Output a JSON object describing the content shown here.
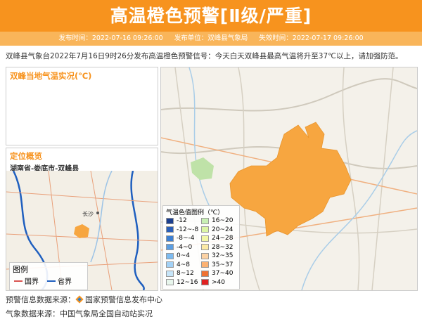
{
  "header": {
    "title": "高温橙色预警[Ⅱ级/严重]",
    "meta": [
      {
        "label": "发布时间：",
        "value": "2022-07-16 09:26:00"
      },
      {
        "label": "发布单位：",
        "value": "双峰县气象局"
      },
      {
        "label": "失效时间：",
        "value": "2022-07-17 09:26:00"
      }
    ]
  },
  "content": "双峰县气象台2022年7月16日9时26分发布高温橙色预警信号：今天白天双峰县最高气温将升至37℃以上，请加强防范。",
  "live_panel": {
    "title": "双峰当地气温实况(℃)"
  },
  "locator": {
    "title": "定位概览",
    "path": "湖南省-娄底市-双峰县",
    "city": "长沙",
    "legend": {
      "title": "图例",
      "items": [
        {
          "label": "国界",
          "color": "#d9534f"
        },
        {
          "label": "省界",
          "color": "#1f5fbf"
        }
      ]
    }
  },
  "map_legend": {
    "title": "气温色值图例（℃）",
    "items": [
      {
        "label": "-12",
        "color": "#1b3f8f"
      },
      {
        "label": "-12~-8",
        "color": "#2a5fb8"
      },
      {
        "label": "-8~-4",
        "color": "#3c7fd2"
      },
      {
        "label": "-4~0",
        "color": "#5b9ee2"
      },
      {
        "label": "0~4",
        "color": "#7dbbf0"
      },
      {
        "label": "4~8",
        "color": "#a2d1f6"
      },
      {
        "label": "8~12",
        "color": "#c6e5f9"
      },
      {
        "label": "12~16",
        "color": "#e8f6ec"
      },
      {
        "label": "16~20",
        "color": "#c8f0b4"
      },
      {
        "label": "20~24",
        "color": "#dbf5a4"
      },
      {
        "label": "24~28",
        "color": "#f1f6a4"
      },
      {
        "label": "28~32",
        "color": "#fbe9a4"
      },
      {
        "label": "32~35",
        "color": "#fcd2a4"
      },
      {
        "label": "35~37",
        "color": "#fbb274"
      },
      {
        "label": "37~40",
        "color": "#f07232"
      },
      {
        "label": ">40",
        "color": "#e02222"
      }
    ]
  },
  "sources": [
    {
      "label": "预警信息数据来源：",
      "value": "国家预警信息发布中心"
    },
    {
      "label": "气象数据来源：",
      "value": "中国气象局全国自动站实况"
    }
  ]
}
